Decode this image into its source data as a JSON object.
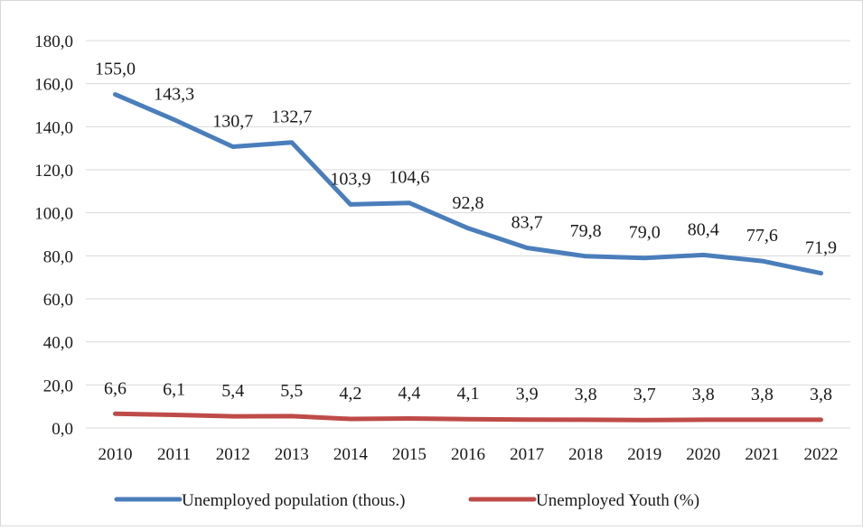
{
  "chart_data": {
    "type": "line",
    "categories": [
      "2010",
      "2011",
      "2012",
      "2013",
      "2014",
      "2015",
      "2016",
      "2017",
      "2018",
      "2019",
      "2020",
      "2021",
      "2022"
    ],
    "series": [
      {
        "name": "Unemployed population (thous.)",
        "values": [
          155.0,
          143.3,
          130.7,
          132.7,
          103.9,
          104.6,
          92.8,
          83.7,
          79.8,
          79.0,
          80.4,
          77.6,
          71.9
        ],
        "labels": [
          "155,0",
          "143,3",
          "130,7",
          "132,7",
          "103,9",
          "104,6",
          "92,8",
          "83,7",
          "79,8",
          "79,0",
          "80,4",
          "77,6",
          "71,9"
        ],
        "color": "#4a7ebb"
      },
      {
        "name": "Unemployed Youth (%)",
        "values": [
          6.6,
          6.1,
          5.4,
          5.5,
          4.2,
          4.4,
          4.1,
          3.9,
          3.8,
          3.7,
          3.8,
          3.8,
          3.8
        ],
        "labels": [
          "6,6",
          "6,1",
          "5,4",
          "5,5",
          "4,2",
          "4,4",
          "4,1",
          "3,9",
          "3,8",
          "3,7",
          "3,8",
          "3,8",
          "3,8"
        ],
        "color": "#be4b48"
      }
    ],
    "yticks": [
      "0,0",
      "20,0",
      "40,0",
      "60,0",
      "80,0",
      "100,0",
      "120,0",
      "140,0",
      "160,0",
      "180,0"
    ],
    "ylim": [
      0,
      180
    ],
    "grid": true,
    "legend_position": "bottom",
    "title": "",
    "xlabel": "",
    "ylabel": ""
  }
}
